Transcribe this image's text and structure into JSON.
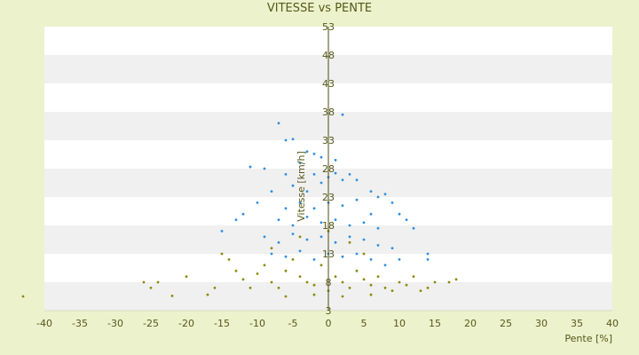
{
  "chart_data": {
    "type": "scatter",
    "title": "VITESSE vs PENTE",
    "xlabel": "Pente [%]",
    "ylabel": "Vitesse [km/h]",
    "xlim": [
      -40,
      40
    ],
    "ylim": [
      3,
      53
    ],
    "x_ticks": [
      "-40",
      "-35",
      "-30",
      "-25",
      "-20",
      "-15",
      "-10",
      "-5",
      "0",
      "5",
      "10",
      "15",
      "20",
      "25",
      "30",
      "35",
      "40"
    ],
    "y_ticks": [
      "53",
      "48",
      "43",
      "38",
      "33",
      "28",
      "23",
      "18",
      "13",
      "8",
      "3"
    ],
    "grid": "horizontal bands",
    "colors": {
      "background": "#ecf2cc",
      "band_light": "#ffffff",
      "band_dark": "#f0f0f0",
      "axis": "#4a4d10",
      "series_blue": "#2f8fe0",
      "series_olive": "#8b8a0c"
    },
    "series": [
      {
        "color": "#2f8fe0",
        "points": [
          [
            -7,
            36
          ],
          [
            2,
            37.5
          ],
          [
            -6,
            33
          ],
          [
            -5,
            33.2
          ],
          [
            -3,
            31
          ],
          [
            -2,
            30.6
          ],
          [
            -1,
            30
          ],
          [
            1,
            29.5
          ],
          [
            -4,
            29
          ],
          [
            -9,
            28
          ],
          [
            -11,
            28.3
          ],
          [
            -6,
            27
          ],
          [
            -2,
            27
          ],
          [
            0,
            26.5
          ],
          [
            1,
            27.2
          ],
          [
            2,
            26
          ],
          [
            3,
            27
          ],
          [
            -1,
            25.5
          ],
          [
            4,
            26
          ],
          [
            6,
            24
          ],
          [
            -8,
            24
          ],
          [
            -5,
            25
          ],
          [
            -3,
            24
          ],
          [
            7,
            23
          ],
          [
            9,
            22
          ],
          [
            8,
            23.5
          ],
          [
            -10,
            22
          ],
          [
            -12,
            20
          ],
          [
            -13,
            19
          ],
          [
            -15,
            17
          ],
          [
            10,
            20
          ],
          [
            11,
            19
          ],
          [
            12,
            17.5
          ],
          [
            14,
            13
          ],
          [
            14,
            12
          ],
          [
            -6,
            21
          ],
          [
            -4,
            22
          ],
          [
            -2,
            21
          ],
          [
            0,
            22
          ],
          [
            2,
            21.5
          ],
          [
            4,
            22.5
          ],
          [
            6,
            20
          ],
          [
            -7,
            19
          ],
          [
            -5,
            18
          ],
          [
            -3,
            19.5
          ],
          [
            -1,
            18.5
          ],
          [
            1,
            19
          ],
          [
            3,
            18
          ],
          [
            5,
            18.5
          ],
          [
            7,
            17.5
          ],
          [
            -9,
            16
          ],
          [
            -7,
            15
          ],
          [
            -5,
            16.5
          ],
          [
            -3,
            15.5
          ],
          [
            -1,
            16
          ],
          [
            1,
            15
          ],
          [
            3,
            16
          ],
          [
            5,
            15.5
          ],
          [
            7,
            14.5
          ],
          [
            9,
            14
          ],
          [
            -8,
            13
          ],
          [
            -6,
            12.5
          ],
          [
            -4,
            13.5
          ],
          [
            -2,
            12
          ],
          [
            0,
            13
          ],
          [
            2,
            12.5
          ],
          [
            4,
            13
          ],
          [
            6,
            12
          ],
          [
            8,
            11
          ],
          [
            10,
            12
          ]
        ]
      },
      {
        "color": "#8b8a0c",
        "points": [
          [
            -43,
            5.5
          ],
          [
            -26,
            8
          ],
          [
            -25,
            7
          ],
          [
            -24,
            8
          ],
          [
            -22,
            5.6
          ],
          [
            -20,
            9
          ],
          [
            -17,
            5.8
          ],
          [
            -16,
            7
          ],
          [
            -15,
            13
          ],
          [
            -14,
            12
          ],
          [
            -13,
            10
          ],
          [
            -12,
            8.5
          ],
          [
            -11,
            7
          ],
          [
            -10,
            9.5
          ],
          [
            -9,
            11
          ],
          [
            -8,
            8
          ],
          [
            -7,
            7
          ],
          [
            -6,
            10
          ],
          [
            -5,
            12
          ],
          [
            -4,
            9
          ],
          [
            -3,
            8
          ],
          [
            -2,
            7.5
          ],
          [
            -1,
            11
          ],
          [
            0,
            6.5
          ],
          [
            1,
            9
          ],
          [
            2,
            8
          ],
          [
            3,
            7
          ],
          [
            4,
            10
          ],
          [
            5,
            8.5
          ],
          [
            6,
            7.5
          ],
          [
            7,
            9
          ],
          [
            8,
            7
          ],
          [
            9,
            6.5
          ],
          [
            10,
            8
          ],
          [
            11,
            7.5
          ],
          [
            12,
            9
          ],
          [
            13,
            6.5
          ],
          [
            14,
            7
          ],
          [
            15,
            8
          ],
          [
            17,
            8
          ],
          [
            18,
            8.5
          ],
          [
            -6,
            5.5
          ],
          [
            -2,
            5.8
          ],
          [
            2,
            5.5
          ],
          [
            6,
            5.8
          ],
          [
            -8,
            14
          ],
          [
            -4,
            16
          ],
          [
            0,
            17
          ],
          [
            3,
            15
          ],
          [
            5,
            13
          ]
        ]
      }
    ]
  }
}
